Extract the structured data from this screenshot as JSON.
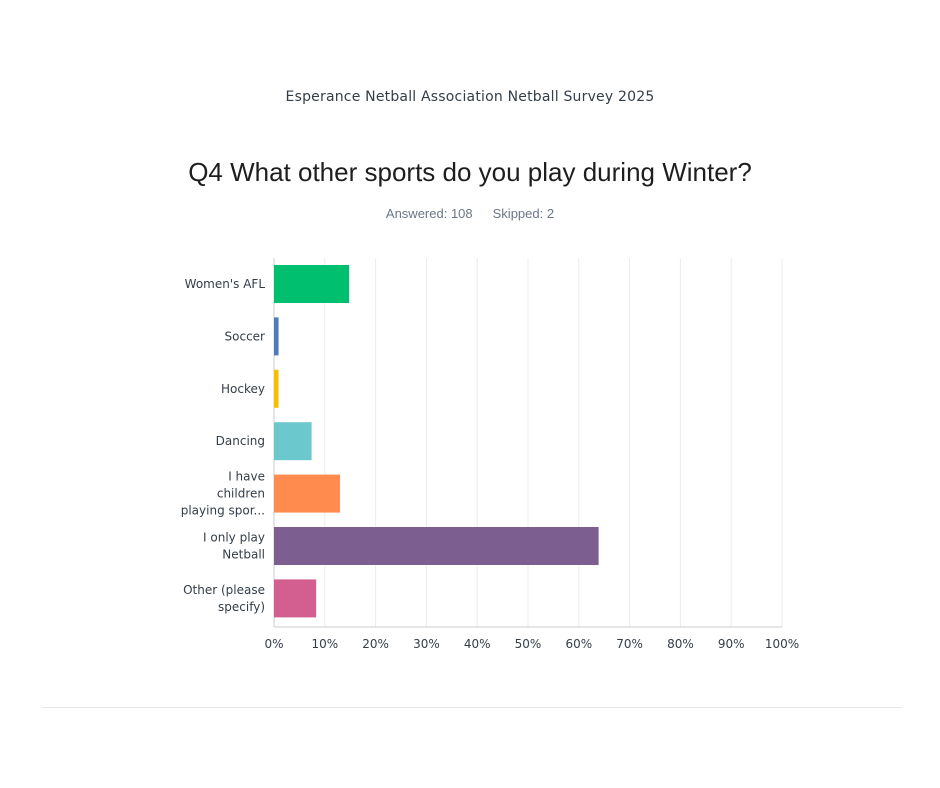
{
  "header": {
    "survey_title": "Esperance Netball Association Netball Survey 2025",
    "question_title": "Q4 What other sports do you play during Winter?",
    "answered": "Answered: 108",
    "skipped": "Skipped: 2"
  },
  "chart_data": {
    "type": "bar",
    "orientation": "horizontal",
    "title": "Q4 What other sports do you play during Winter?",
    "categories": [
      [
        "Women's AFL"
      ],
      [
        "Soccer"
      ],
      [
        "Hockey"
      ],
      [
        "Dancing"
      ],
      [
        "I have",
        "children",
        "playing spor..."
      ],
      [
        "I only play",
        "Netball"
      ],
      [
        "Other (please",
        "specify)"
      ]
    ],
    "values": [
      14.8,
      0.9,
      0.9,
      7.4,
      13.0,
      63.9,
      8.3
    ],
    "colors": [
      "#00bf6f",
      "#507cb6",
      "#f9be00",
      "#6bc8cd",
      "#ff8b4f",
      "#7d5e90",
      "#d25f90"
    ],
    "x_ticks": [
      "0%",
      "10%",
      "20%",
      "30%",
      "40%",
      "50%",
      "60%",
      "70%",
      "80%",
      "90%",
      "100%"
    ],
    "xlim": [
      0,
      100
    ],
    "grid": true
  }
}
